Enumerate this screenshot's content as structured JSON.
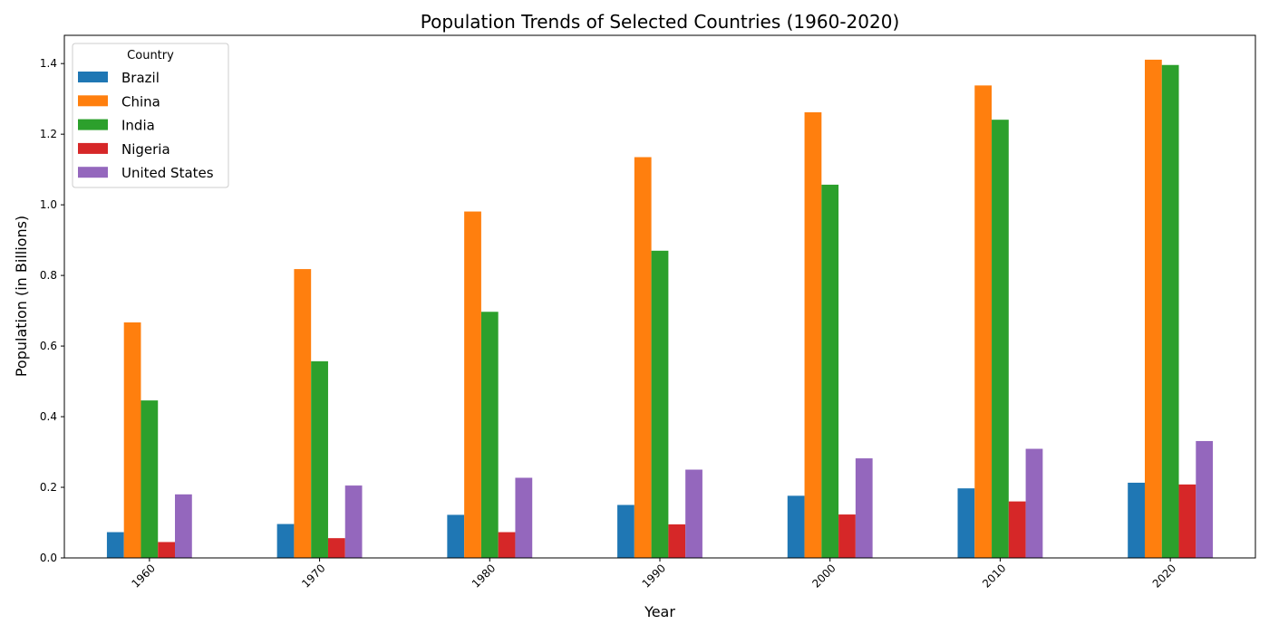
{
  "chart_data": {
    "type": "bar",
    "title": "Population Trends of Selected Countries (1960-2020)",
    "xlabel": "Year",
    "ylabel": "Population (in Billions)",
    "categories": [
      "1960",
      "1970",
      "1980",
      "1990",
      "2000",
      "2010",
      "2020"
    ],
    "ylim": [
      0,
      1.48
    ],
    "yticks": [
      "0.0",
      "0.2",
      "0.4",
      "0.6",
      "0.8",
      "1.0",
      "1.2",
      "1.4"
    ],
    "legend": {
      "title": "Country",
      "position": "top-left"
    },
    "series": [
      {
        "name": "Brazil",
        "color": "#1f77b4",
        "values": [
          0.073,
          0.096,
          0.122,
          0.15,
          0.176,
          0.197,
          0.213
        ]
      },
      {
        "name": "China",
        "color": "#ff7f0e",
        "values": [
          0.667,
          0.818,
          0.981,
          1.135,
          1.262,
          1.338,
          1.411
        ]
      },
      {
        "name": "India",
        "color": "#2ca02c",
        "values": [
          0.446,
          0.557,
          0.697,
          0.87,
          1.057,
          1.241,
          1.396
        ]
      },
      {
        "name": "Nigeria",
        "color": "#d62728",
        "values": [
          0.045,
          0.056,
          0.073,
          0.095,
          0.123,
          0.16,
          0.208
        ]
      },
      {
        "name": "United States",
        "color": "#9467bd",
        "values": [
          0.18,
          0.205,
          0.227,
          0.25,
          0.282,
          0.309,
          0.331
        ]
      }
    ]
  }
}
